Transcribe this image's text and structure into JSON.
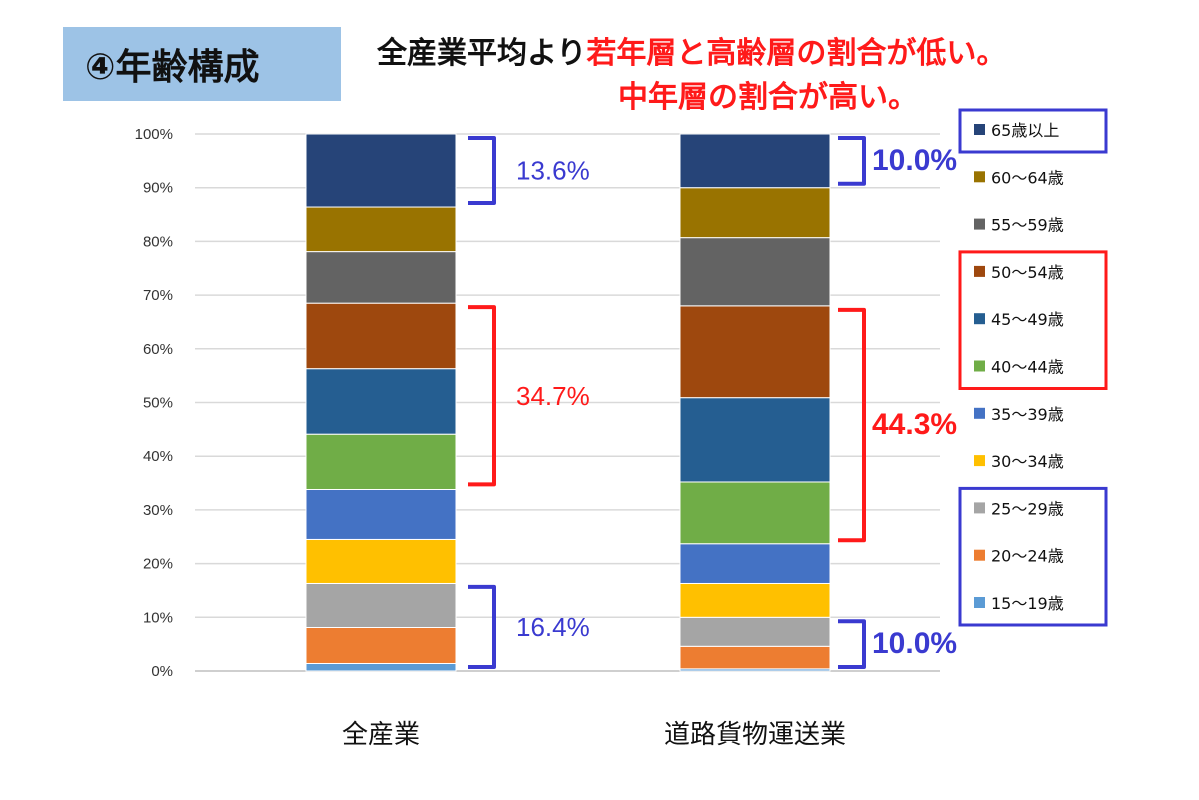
{
  "title": "④年齢構成",
  "headline": {
    "line1_black": "全産業平均より",
    "line1_red": "若年層と高齢層の割合が低い。",
    "line2_red": "中年層の割合が高い。"
  },
  "colors": {
    "highlight_red": "#ff1a1a",
    "highlight_blue": "#3a3ad0",
    "title_box": "#9dc3e6"
  },
  "chart_data": {
    "type": "bar",
    "stacked": true,
    "categories": [
      "全産業",
      "道路貨物運送業"
    ],
    "ylim": [
      0,
      100
    ],
    "yticks": [
      "0%",
      "10%",
      "20%",
      "30%",
      "40%",
      "50%",
      "60%",
      "70%",
      "80%",
      "90%",
      "100%"
    ],
    "grid": true,
    "legend_position": "right",
    "series": [
      {
        "name": "15〜19歳",
        "color": "#5b9bd5",
        "values": [
          1.4,
          0.4
        ]
      },
      {
        "name": "20〜24歳",
        "color": "#ed7d31",
        "values": [
          6.7,
          4.2
        ]
      },
      {
        "name": "25〜29歳",
        "color": "#a5a5a5",
        "values": [
          8.2,
          5.4
        ]
      },
      {
        "name": "30〜34歳",
        "color": "#ffc000",
        "values": [
          8.2,
          6.3
        ]
      },
      {
        "name": "35〜39歳",
        "color": "#4472c4",
        "values": [
          9.3,
          7.4
        ]
      },
      {
        "name": "40〜44歳",
        "color": "#70ad47",
        "values": [
          10.3,
          11.5
        ]
      },
      {
        "name": "45〜49歳",
        "color": "#255e91",
        "values": [
          12.2,
          15.7
        ]
      },
      {
        "name": "50〜54歳",
        "color": "#9e480e",
        "values": [
          12.2,
          17.1
        ]
      },
      {
        "name": "55〜59歳",
        "color": "#636363",
        "values": [
          9.6,
          12.7
        ]
      },
      {
        "name": "60〜64歳",
        "color": "#997300",
        "values": [
          8.3,
          9.3
        ]
      },
      {
        "name": "65歳以上",
        "color": "#264478",
        "values": [
          13.6,
          10.0
        ]
      }
    ],
    "annotations": [
      {
        "label": "13.6%",
        "color": "blue",
        "bar": 0,
        "from": 86.4,
        "to": 100,
        "bold": false
      },
      {
        "label": "34.7%",
        "color": "red",
        "bar": 0,
        "from": 34.0,
        "to": 68.5,
        "bold": false
      },
      {
        "label": "16.4%",
        "color": "blue",
        "bar": 0,
        "from": 0,
        "to": 16.4,
        "bold": false
      },
      {
        "label": "10.0%",
        "color": "blue",
        "bar": 1,
        "from": 90.0,
        "to": 100,
        "bold": true
      },
      {
        "label": "44.3%",
        "color": "red",
        "bar": 1,
        "from": 23.6,
        "to": 68.0,
        "bold": true
      },
      {
        "label": "10.0%",
        "color": "blue",
        "bar": 1,
        "from": 0,
        "to": 10.0,
        "bold": true
      }
    ]
  }
}
